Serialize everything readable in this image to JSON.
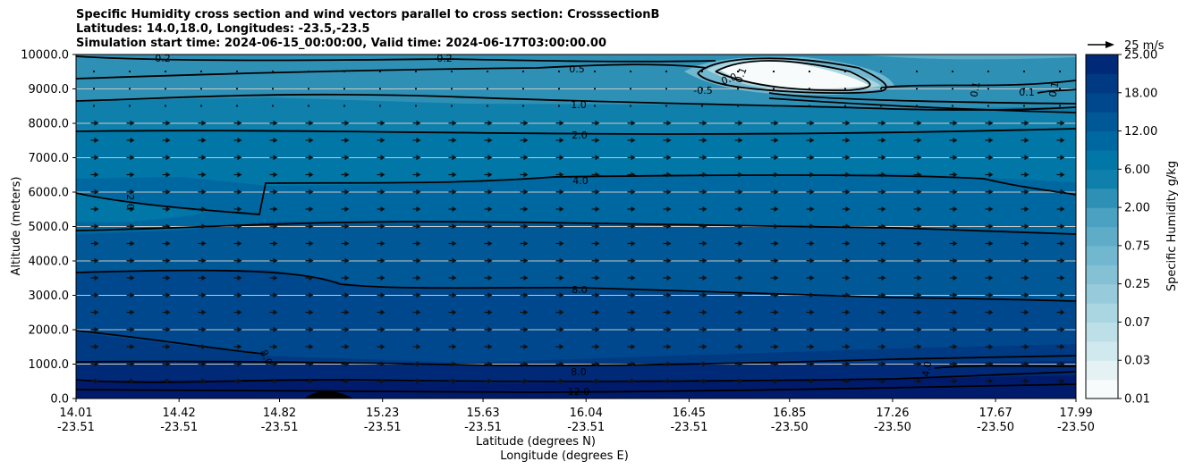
{
  "chart_data": {
    "type": "heatmap",
    "title_lines": [
      "Specific Humidity cross section and wind vectors parallel to cross section: CrosssectionB",
      "Latitudes: 14.0,18.0, Longitudes: -23.5,-23.5",
      "Simulation start time: 2024-06-15_00:00:00, Valid time: 2024-06-17T03:00:00.00"
    ],
    "xlabel_lines": [
      "Latitude (degrees N)",
      "Longitude (degrees E)"
    ],
    "ylabel": "Altitude (meters)",
    "xlim": [
      14.01,
      17.99
    ],
    "ylim": [
      0,
      10000
    ],
    "x_ticks": [
      {
        "lat": "14.01",
        "lon": "-23.51"
      },
      {
        "lat": "14.42",
        "lon": "-23.51"
      },
      {
        "lat": "14.82",
        "lon": "-23.51"
      },
      {
        "lat": "15.23",
        "lon": "-23.51"
      },
      {
        "lat": "15.63",
        "lon": "-23.51"
      },
      {
        "lat": "16.04",
        "lon": "-23.51"
      },
      {
        "lat": "16.45",
        "lon": "-23.51"
      },
      {
        "lat": "16.85",
        "lon": "-23.50"
      },
      {
        "lat": "17.26",
        "lon": "-23.50"
      },
      {
        "lat": "17.67",
        "lon": "-23.50"
      },
      {
        "lat": "17.99",
        "lon": "-23.50"
      }
    ],
    "y_ticks": [
      "0.0",
      "1000.0",
      "2000.0",
      "3000.0",
      "4000.0",
      "5000.0",
      "6000.0",
      "7000.0",
      "8000.0",
      "9000.0",
      "10000.0"
    ],
    "grid": "horizontal",
    "colorbar": {
      "label": "Specific Humidity g/kg",
      "levels": [
        0.01,
        0.02,
        0.03,
        0.05,
        0.07,
        0.1,
        0.25,
        0.5,
        0.75,
        1.0,
        2.0,
        3.0,
        6.0,
        9.0,
        12.0,
        15.0,
        18.0,
        21.0,
        25.0
      ],
      "tick_labels": [
        "0.01",
        "0.03",
        "0.07",
        "0.25",
        "0.75",
        "2.00",
        "6.00",
        "12.00",
        "18.00",
        "25.00"
      ],
      "colors": [
        "#f7fbfb",
        "#e4f2f4",
        "#d0e9ee",
        "#bde0e8",
        "#aad6e1",
        "#97cbdb",
        "#84c1d5",
        "#71b7cf",
        "#5eacc8",
        "#4aa1c1",
        "#2f90b6",
        "#0f7fab",
        "#0077a6",
        "#0068a0",
        "#005897",
        "#00488d",
        "#003a83",
        "#002a78",
        "#001b6b"
      ]
    },
    "quiver_key": {
      "label": "25 m/s",
      "speed": 25
    },
    "contour_labels": [
      "0.2",
      "0.2",
      "0.5",
      "0.0",
      "0.1",
      "-0.5",
      "0.1",
      "0.1",
      "0.1",
      "1.0",
      "2.0",
      "2.0",
      "4.0",
      "8.0",
      "8.0",
      "8.0",
      "4.0",
      "12.0"
    ],
    "wind_vectors": {
      "direction": "along cross section, toward increasing latitude",
      "typical_speed_ms": 5
    }
  }
}
